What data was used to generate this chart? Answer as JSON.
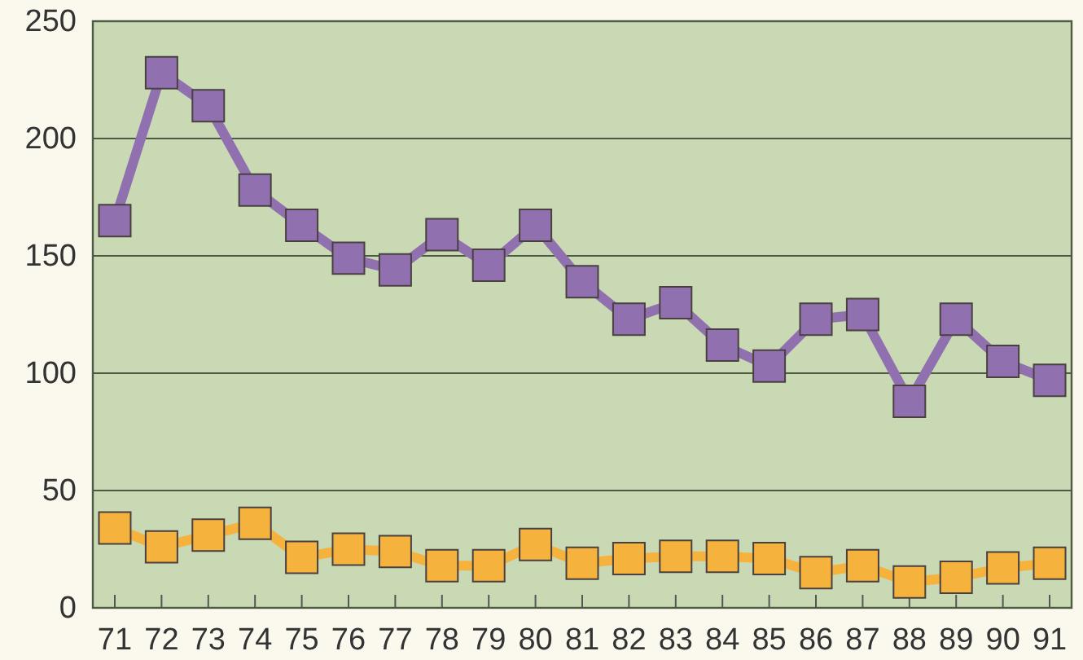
{
  "chart_data": {
    "type": "line",
    "categories": [
      "71",
      "72",
      "73",
      "74",
      "75",
      "76",
      "77",
      "78",
      "79",
      "80",
      "81",
      "82",
      "83",
      "84",
      "85",
      "86",
      "87",
      "88",
      "89",
      "90",
      "91"
    ],
    "series": [
      {
        "color": "#9170b0",
        "values": [
          165,
          228,
          214,
          178,
          163,
          149,
          144,
          159,
          146,
          163,
          139,
          123,
          130,
          112,
          103,
          123,
          125,
          88,
          123,
          105,
          97
        ]
      },
      {
        "color": "#f5b33e",
        "values": [
          34,
          26,
          31,
          36,
          21.5,
          25,
          24,
          18,
          18,
          27,
          19,
          21,
          22,
          22,
          21,
          15,
          18,
          11,
          13,
          17,
          19
        ]
      }
    ],
    "ylim": [
      0,
      250
    ],
    "yticks": [
      0,
      50,
      100,
      150,
      200,
      250
    ],
    "grid": "y",
    "marker": "square",
    "line_style": "solid"
  }
}
